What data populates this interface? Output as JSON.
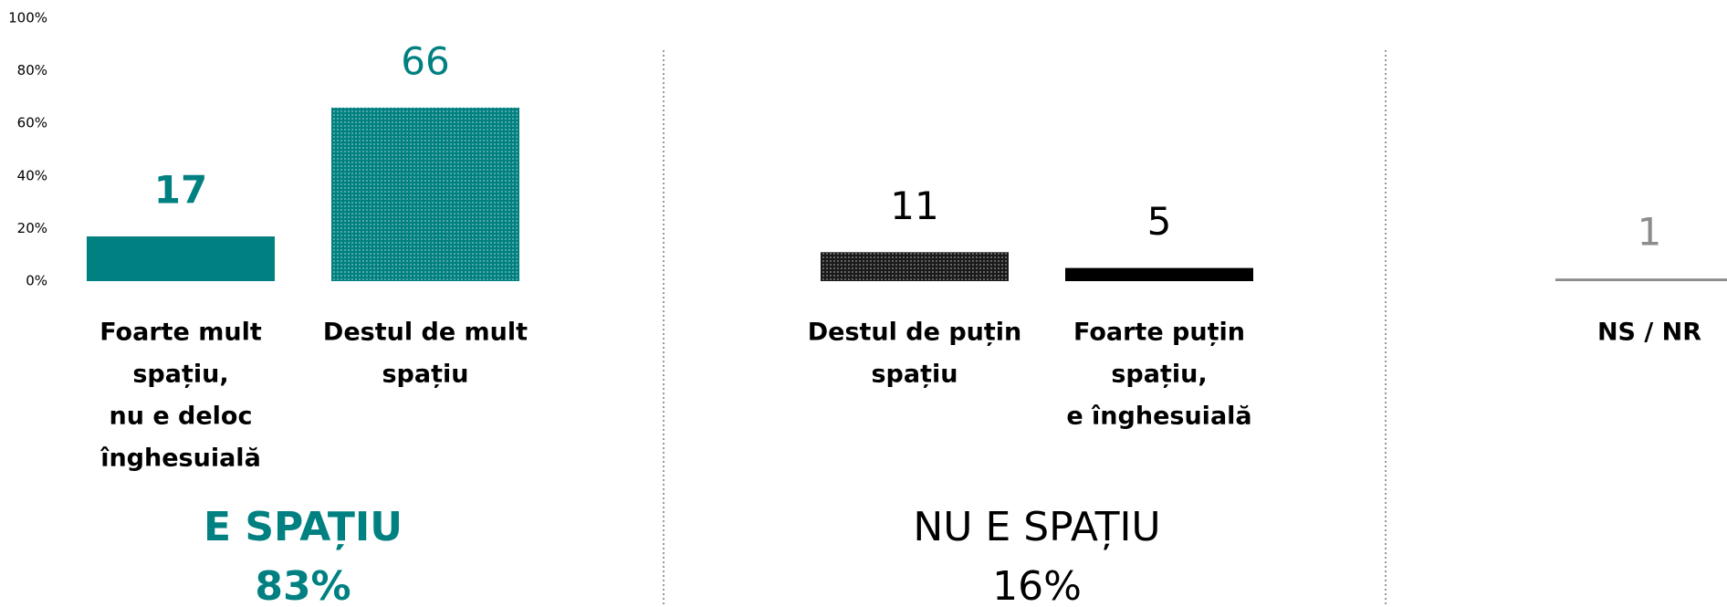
{
  "chart_data": {
    "type": "bar",
    "categories": [
      [
        "Foarte mult",
        "spațiu,",
        "nu e deloc",
        "înghesuială"
      ],
      [
        "Destul de mult",
        "spațiu"
      ],
      [
        "Destul de puțin",
        "spațiu"
      ],
      [
        "Foarte puțin",
        "spațiu,",
        "e înghesuială"
      ],
      [
        "NS / NR"
      ]
    ],
    "values": [
      17,
      66,
      11,
      5,
      1
    ],
    "colors": [
      "#008080",
      "#008080",
      "#1a1a1a",
      "#000000",
      "#8c8c8c"
    ],
    "fill_styles": [
      "solid",
      "dots",
      "dots",
      "solid",
      "solid"
    ],
    "value_label_colors": [
      "#008080",
      "#008080",
      "#000000",
      "#000000",
      "#8c8c8c"
    ],
    "value_label_bold": [
      true,
      false,
      false,
      false,
      false
    ],
    "ylim": [
      0,
      100
    ],
    "yticks": [
      {
        "value": 0,
        "label": "0%"
      },
      {
        "value": 20,
        "label": "20%"
      },
      {
        "value": 40,
        "label": "40%"
      },
      {
        "value": 60,
        "label": "60%"
      },
      {
        "value": 80,
        "label": "80%"
      },
      {
        "value": 100,
        "label": "100%"
      }
    ],
    "groups": [
      {
        "name": "E SPAȚIU",
        "value": 83,
        "value_label": "83%",
        "color": "#008080",
        "bold": true,
        "members": [
          0,
          1
        ]
      },
      {
        "name": "NU E SPAȚIU",
        "value": 16,
        "value_label": "16%",
        "color": "#000000",
        "bold": false,
        "members": [
          2,
          3
        ]
      }
    ]
  }
}
